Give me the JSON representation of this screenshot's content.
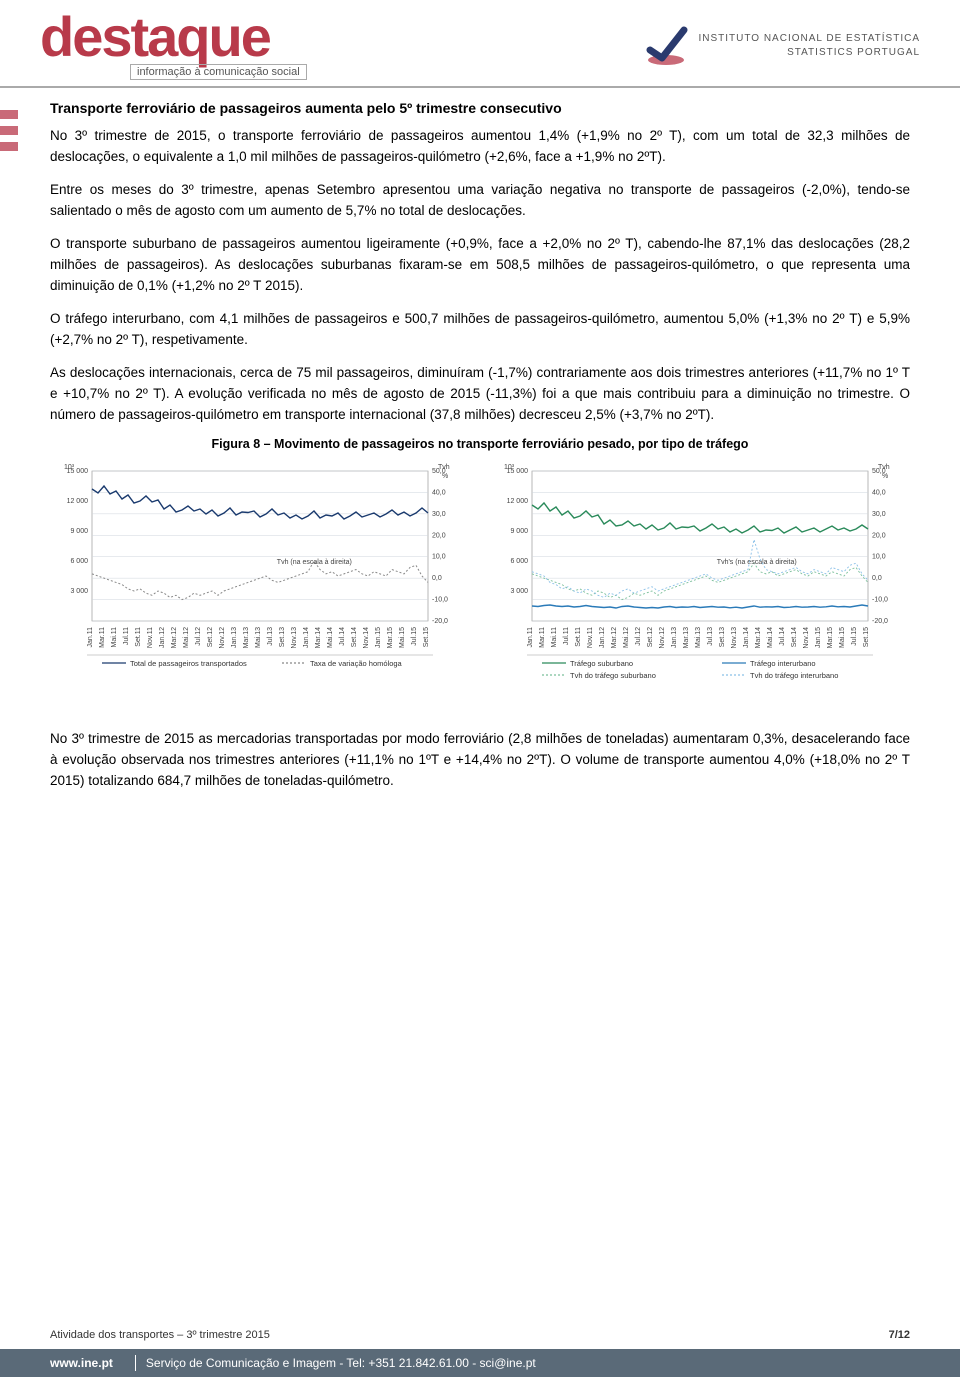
{
  "header": {
    "brand": "destaque",
    "brand_subtitle": "informação à comunicação social",
    "org_line1": "INSTITUTO NACIONAL DE ESTATÍSTICA",
    "org_line2": "STATISTICS PORTUGAL"
  },
  "section_title": "Transporte ferroviário de passageiros aumenta pelo 5º trimestre consecutivo",
  "paragraphs": {
    "p1": "No 3º trimestre de 2015, o transporte ferroviário de passageiros aumentou 1,4% (+1,9% no 2º T), com um total de 32,3 milhões de deslocações, o equivalente a 1,0 mil milhões de passageiros-quilómetro (+2,6%, face a +1,9% no 2ºT).",
    "p2": "Entre os meses do 3º trimestre, apenas Setembro apresentou uma variação negativa no transporte de passageiros (-2,0%), tendo-se salientado o mês de agosto com um aumento de 5,7% no total de deslocações.",
    "p3": "O transporte suburbano de passageiros aumentou ligeiramente (+0,9%, face a +2,0% no 2º T), cabendo-lhe 87,1% das deslocações (28,2 milhões de passageiros). As deslocações suburbanas fixaram-se em 508,5 milhões de passageiros-quilómetro, o que representa uma diminuição de 0,1% (+1,2% no 2º T 2015).",
    "p4": "O tráfego interurbano, com 4,1 milhões de passageiros e 500,7 milhões de passageiros-quilómetro, aumentou 5,0% (+1,3% no 2º T) e 5,9% (+2,7% no 2º T), respetivamente.",
    "p5": "As deslocações internacionais, cerca de 75 mil passageiros, diminuíram (-1,7%) contrariamente aos dois trimestres anteriores (+11,7% no 1º T e +10,7% no 2º T). A evolução verificada no mês de agosto de 2015 (-11,3%) foi a que mais contribuiu para a diminuição no trimestre. O número de passageiros-quilómetro em transporte internacional (37,8 milhões) decresceu 2,5% (+3,7% no 2ºT).",
    "p6": "No 3º trimestre de 2015 as mercadorias transportadas por modo ferroviário (2,8 milhões de toneladas) aumentaram 0,3%, desacelerando face à evolução observada nos trimestres anteriores (+11,1% no 1ºT e +14,4% no 2ºT). O volume de transporte aumentou 4,0% (+18,0% no 2º T 2015) totalizando 684,7 milhões de toneladas-quilómetro."
  },
  "figure_caption": "Figura 8 – Movimento de passageiros no transporte ferroviário pesado, por tipo de tráfego",
  "chart_left": {
    "type": "line",
    "left_unit": "10³",
    "right_unit": "Tvh\n%",
    "y_left_ticks": [
      "15 000",
      "12 000",
      "9 000",
      "6 000",
      "3 000"
    ],
    "y_right_ticks": [
      "50,0",
      "40,0",
      "30,0",
      "20,0",
      "10,0",
      "0,0",
      "-10,0",
      "-20,0"
    ],
    "x_labels": [
      "Jan.11",
      "Mar.11",
      "Mai.11",
      "Jul.11",
      "Set.11",
      "Nov.11",
      "Jan.12",
      "Mar.12",
      "Mai.12",
      "Jul.12",
      "Set.12",
      "Nov.12",
      "Jan.13",
      "Mar.13",
      "Mai.13",
      "Jul.13",
      "Set.13",
      "Nov.13",
      "Jan.14",
      "Mar.14",
      "Mai.14",
      "Jul.14",
      "Set.14",
      "Nov.14",
      "Jan.15",
      "Mar.15",
      "Mai.15",
      "Jul.15",
      "Set.15"
    ],
    "series": {
      "total": {
        "label": "Total de passageiros transportados",
        "color": "#1a3a6e",
        "style": "solid",
        "width": 1.4,
        "values_thousands": [
          13200,
          12800,
          13500,
          12700,
          13000,
          12200,
          12600,
          11800,
          12000,
          12500,
          11900,
          12100,
          11200,
          11600,
          10900,
          11100,
          11500,
          11000,
          11200,
          10700,
          11100,
          10500,
          10800,
          11300,
          10600,
          10900,
          10850,
          11000,
          10400,
          10700,
          11200,
          10600,
          10800,
          10300,
          10600,
          10200,
          10500,
          11000,
          10300,
          10600,
          10500,
          10800,
          10200,
          10500,
          10900,
          10400,
          10600,
          10800,
          10400,
          10700,
          11100,
          10600,
          10900,
          10500,
          10800,
          11300,
          10800
        ]
      },
      "tvh": {
        "label": "Taxa de variação homóloga",
        "note": "Tvh (na escala à direita)",
        "color": "#888888",
        "style": "dashed",
        "width": 1,
        "values_pct": [
          2,
          1,
          0,
          -1,
          -2,
          -3,
          -5,
          -6,
          -5,
          -7,
          -8,
          -6,
          -7,
          -9,
          -8,
          -10,
          -9,
          -7,
          -8,
          -7,
          -6,
          -8,
          -6,
          -5,
          -4,
          -3,
          -2,
          -1,
          0,
          1,
          -1,
          -2,
          -1,
          0,
          1,
          2,
          3,
          8,
          4,
          2,
          3,
          1,
          2,
          3,
          4,
          2,
          1,
          3,
          2,
          1,
          4,
          3,
          2,
          5,
          6,
          1,
          -2
        ]
      }
    },
    "legend": [
      "Total de passageiros transportados",
      "Taxa de variação homóloga"
    ],
    "background_color": "#ffffff",
    "grid_color": "#cfd6dc",
    "ylim_left": [
      0,
      15000
    ],
    "ylim_right": [
      -20,
      50
    ]
  },
  "chart_right": {
    "type": "line",
    "left_unit": "10³",
    "right_unit": "Tvh\n%",
    "y_left_ticks": [
      "15 000",
      "12 000",
      "9 000",
      "6 000",
      "3 000"
    ],
    "y_right_ticks": [
      "50,0",
      "40,0",
      "30,0",
      "20,0",
      "10,0",
      "0,0",
      "-10,0",
      "-20,0"
    ],
    "x_labels": [
      "Jan.11",
      "Mar.11",
      "Mai.11",
      "Jul.11",
      "Set.11",
      "Nov.11",
      "Jan.12",
      "Mar.12",
      "Mai.12",
      "Jul.12",
      "Set.12",
      "Nov.12",
      "Jan.13",
      "Mar.13",
      "Mai.13",
      "Jul.13",
      "Set.13",
      "Nov.13",
      "Jan.14",
      "Mar.14",
      "Mai.14",
      "Jul.14",
      "Set.14",
      "Nov.14",
      "Jan.15",
      "Mar.15",
      "Mai.15",
      "Jul.15",
      "Set.15"
    ],
    "series": {
      "suburbano": {
        "label": "Tráfego suburbano",
        "color": "#2a8a5a",
        "style": "solid",
        "width": 1.4,
        "values_thousands": [
          11600,
          11200,
          11800,
          11000,
          11400,
          10600,
          11000,
          10300,
          10500,
          11000,
          10400,
          10600,
          9700,
          10100,
          9500,
          9600,
          10000,
          9500,
          9700,
          9200,
          9600,
          9100,
          9300,
          9800,
          9200,
          9400,
          9350,
          9500,
          9000,
          9300,
          9700,
          9200,
          9400,
          8900,
          9200,
          8800,
          9100,
          9500,
          8900,
          9100,
          9050,
          9300,
          8800,
          9100,
          9400,
          8900,
          9100,
          9300,
          8900,
          9200,
          9500,
          9100,
          9300,
          9000,
          9200,
          9600,
          9200
        ]
      },
      "interurbano": {
        "label": "Tráfego interurbano",
        "color": "#2a7ab8",
        "style": "solid",
        "width": 1.4,
        "values_thousands": [
          1500,
          1450,
          1550,
          1600,
          1500,
          1450,
          1500,
          1400,
          1450,
          1550,
          1450,
          1400,
          1350,
          1400,
          1300,
          1450,
          1500,
          1400,
          1350,
          1300,
          1350,
          1300,
          1400,
          1450,
          1350,
          1400,
          1380,
          1450,
          1350,
          1400,
          1450,
          1380,
          1400,
          1320,
          1380,
          1300,
          1400,
          1500,
          1380,
          1420,
          1400,
          1450,
          1350,
          1380,
          1450,
          1380,
          1400,
          1450,
          1380,
          1420,
          1500,
          1420,
          1450,
          1400,
          1500,
          1600,
          1500
        ]
      },
      "tvh_suburbano": {
        "label": "Tvh do tráfego suburbano",
        "note": "Tvh's (na escala à direita)",
        "color": "#7abf9a",
        "style": "dashed",
        "width": 0.9,
        "values_pct": [
          2,
          1,
          0,
          -1,
          -2,
          -3,
          -5,
          -6,
          -5,
          -7,
          -8,
          -6,
          -7,
          -9,
          -8,
          -10,
          -9,
          -7,
          -8,
          -7,
          -6,
          -8,
          -6,
          -5,
          -4,
          -3,
          -2,
          -1,
          0,
          1,
          -1,
          -2,
          -1,
          0,
          1,
          2,
          3,
          7,
          3,
          2,
          3,
          1,
          2,
          3,
          4,
          2,
          1,
          3,
          2,
          1,
          3,
          2,
          1,
          4,
          5,
          1,
          -2
        ]
      },
      "tvh_interurbano": {
        "label": "Tvh do tráfego interurbano",
        "color": "#8ac0e8",
        "style": "dashed",
        "width": 0.9,
        "values_pct": [
          3,
          2,
          1,
          -2,
          -3,
          -5,
          -4,
          -6,
          -7,
          -5,
          -6,
          -8,
          -9,
          -7,
          -8,
          -6,
          -5,
          -7,
          -6,
          -5,
          -4,
          -6,
          -5,
          -4,
          -3,
          -2,
          -1,
          0,
          1,
          2,
          0,
          -1,
          0,
          1,
          2,
          3,
          4,
          18,
          9,
          4,
          3,
          2,
          3,
          4,
          5,
          3,
          2,
          4,
          3,
          2,
          5,
          4,
          3,
          6,
          7,
          2,
          -1
        ]
      }
    },
    "legend": [
      "Tráfego suburbano",
      "Tráfego interurbano",
      "Tvh do tráfego suburbano",
      "Tvh do tráfego interurbano"
    ],
    "background_color": "#ffffff",
    "grid_color": "#cfd6dc",
    "ylim_left": [
      0,
      15000
    ],
    "ylim_right": [
      -20,
      50
    ]
  },
  "page_meta": {
    "doc_title": "Atividade dos transportes – 3º trimestre 2015",
    "page_num": "7/12"
  },
  "footer": {
    "site": "www.ine.pt",
    "contact": "Serviço de Comunicação e Imagem - Tel: +351 21.842.61.00 - sci@ine.pt"
  }
}
